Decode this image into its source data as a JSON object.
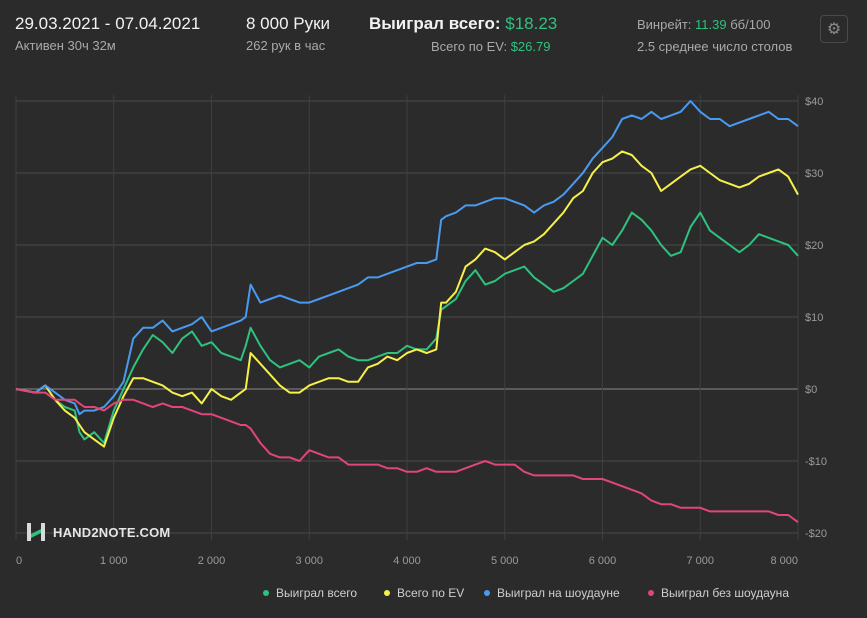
{
  "header": {
    "date_range": "29.03.2021 - 07.04.2021",
    "active": "Активен 30ч 32м",
    "hands": "8 000 Руки",
    "hands_per_hour": "262 рук в час",
    "won_label": "Выиграл всего:",
    "won_value": "$18.23",
    "ev_label": "Всего по EV:",
    "ev_value": "$26.79",
    "winrate_label": "Винрейт:",
    "winrate_value": "11.39",
    "winrate_unit": "бб/100",
    "avg_tables": "2.5 среднее число столов"
  },
  "settings_icon": "gear-icon",
  "logo": {
    "text": "HAND2NOTE.COM",
    "icon": "hand2note-logo-icon"
  },
  "chart_data": {
    "type": "line",
    "xlabel": "",
    "ylabel": "",
    "xlim": [
      0,
      8000
    ],
    "ylim": [
      -20,
      40
    ],
    "x_ticks": [
      0,
      1000,
      2000,
      3000,
      4000,
      5000,
      6000,
      7000,
      8000
    ],
    "x_tick_labels": [
      "0",
      "1 000",
      "2 000",
      "3 000",
      "4 000",
      "5 000",
      "6 000",
      "7 000",
      "8 000"
    ],
    "y_ticks": [
      40,
      30,
      20,
      10,
      0,
      -10,
      -20
    ],
    "y_tick_labels": [
      "$40",
      "$30",
      "$20",
      "$10",
      "$0",
      "-$10",
      "-$20"
    ],
    "grid": true,
    "legend_position": "bottom-right",
    "x": [
      0,
      200,
      300,
      400,
      500,
      600,
      650,
      700,
      800,
      900,
      1000,
      1100,
      1200,
      1300,
      1400,
      1500,
      1600,
      1700,
      1800,
      1900,
      2000,
      2100,
      2200,
      2300,
      2350,
      2400,
      2500,
      2600,
      2700,
      2800,
      2900,
      3000,
      3100,
      3200,
      3300,
      3400,
      3500,
      3600,
      3700,
      3800,
      3900,
      4000,
      4100,
      4200,
      4300,
      4350,
      4400,
      4500,
      4600,
      4700,
      4800,
      4900,
      5000,
      5100,
      5200,
      5300,
      5400,
      5500,
      5600,
      5700,
      5800,
      5900,
      6000,
      6100,
      6200,
      6300,
      6400,
      6500,
      6600,
      6700,
      6800,
      6900,
      7000,
      7100,
      7200,
      7300,
      7400,
      7500,
      7600,
      7700,
      7800,
      7900,
      8000
    ],
    "series": [
      {
        "name": "Выиграл всего",
        "color": "#2ec27e",
        "values": [
          0,
          -0.5,
          0.5,
          -1.5,
          -2.5,
          -3,
          -6,
          -7,
          -6,
          -7.5,
          -3,
          0,
          3,
          5.5,
          7.5,
          6.5,
          5,
          7,
          8,
          6,
          6.5,
          5,
          4.5,
          4,
          6,
          8.5,
          6,
          4,
          3,
          3.5,
          4,
          3,
          4.5,
          5,
          5.5,
          4.5,
          4,
          4,
          4.5,
          5,
          5,
          6,
          5.5,
          5.5,
          7,
          11,
          11.5,
          12.5,
          15,
          16.5,
          14.5,
          15,
          16,
          16.5,
          17,
          15.5,
          14.5,
          13.5,
          14,
          15,
          16,
          18.5,
          21,
          20,
          22,
          24.5,
          23.5,
          22,
          20,
          18.5,
          19,
          22.5,
          24.5,
          22,
          21,
          20,
          19,
          20,
          21.5,
          21,
          20.5,
          20,
          18.5
        ]
      },
      {
        "name": "Всего по EV",
        "color": "#f5f04a",
        "values": [
          0,
          -0.5,
          0.5,
          -1.5,
          -3,
          -4,
          -5,
          -6,
          -7,
          -8,
          -4,
          -1,
          1.5,
          1.5,
          1,
          0.5,
          -0.5,
          -1,
          -0.5,
          -2,
          0,
          -1,
          -1.5,
          -0.5,
          0,
          5,
          3.5,
          2,
          0.5,
          -0.5,
          -0.5,
          0.5,
          1,
          1.5,
          1.5,
          1,
          1,
          3,
          3.5,
          4.5,
          4,
          5,
          5.5,
          5,
          5.5,
          12,
          12,
          13.5,
          17,
          18,
          19.5,
          19,
          18,
          19,
          20,
          20.5,
          21.5,
          23,
          24.5,
          26.5,
          27.5,
          30,
          31.5,
          32,
          33,
          32.5,
          31,
          30,
          27.5,
          28.5,
          29.5,
          30.5,
          31,
          30,
          29,
          28.5,
          28,
          28.5,
          29.5,
          30,
          30.5,
          29.5,
          27
        ]
      },
      {
        "name": "Выиграл на шоудауне",
        "color": "#4a9af0",
        "values": [
          0,
          -0.5,
          0.5,
          -0.5,
          -1.5,
          -2,
          -3.5,
          -3,
          -3,
          -2.5,
          -1,
          1,
          7,
          8.5,
          8.5,
          9.5,
          8,
          8.5,
          9,
          10,
          8,
          8.5,
          9,
          9.5,
          10,
          14.5,
          12,
          12.5,
          13,
          12.5,
          12,
          12,
          12.5,
          13,
          13.5,
          14,
          14.5,
          15.5,
          15.5,
          16,
          16.5,
          17,
          17.5,
          17.5,
          18,
          23.5,
          24,
          24.5,
          25.5,
          25.5,
          26,
          26.5,
          26.5,
          26,
          25.5,
          24.5,
          25.5,
          26,
          27,
          28.5,
          30,
          32,
          33.5,
          35,
          37.5,
          38,
          37.5,
          38.5,
          37.5,
          38,
          38.5,
          40,
          38.5,
          37.5,
          37.5,
          36.5,
          37,
          37.5,
          38,
          38.5,
          37.5,
          37.5,
          36.5
        ]
      },
      {
        "name": "Выиграл без шоудауна",
        "color": "#e0457b",
        "values": [
          0,
          -0.5,
          -0.5,
          -1.5,
          -1.5,
          -1.5,
          -2,
          -2.5,
          -2.5,
          -3,
          -2,
          -1.5,
          -1.5,
          -2,
          -2.5,
          -2,
          -2.5,
          -2.5,
          -3,
          -3.5,
          -3.5,
          -4,
          -4.5,
          -5,
          -5,
          -5.5,
          -7.5,
          -9,
          -9.5,
          -9.5,
          -10,
          -8.5,
          -9,
          -9.5,
          -9.5,
          -10.5,
          -10.5,
          -10.5,
          -10.5,
          -11,
          -11,
          -11.5,
          -11.5,
          -11,
          -11.5,
          -11.5,
          -11.5,
          -11.5,
          -11,
          -10.5,
          -10,
          -10.5,
          -10.5,
          -10.5,
          -11.5,
          -12,
          -12,
          -12,
          -12,
          -12,
          -12.5,
          -12.5,
          -12.5,
          -13,
          -13.5,
          -14,
          -14.5,
          -15.5,
          -16,
          -16,
          -16.5,
          -16.5,
          -16.5,
          -17,
          -17,
          -17,
          -17,
          -17,
          -17,
          -17,
          -17.5,
          -17.5,
          -18.5
        ]
      }
    ]
  }
}
